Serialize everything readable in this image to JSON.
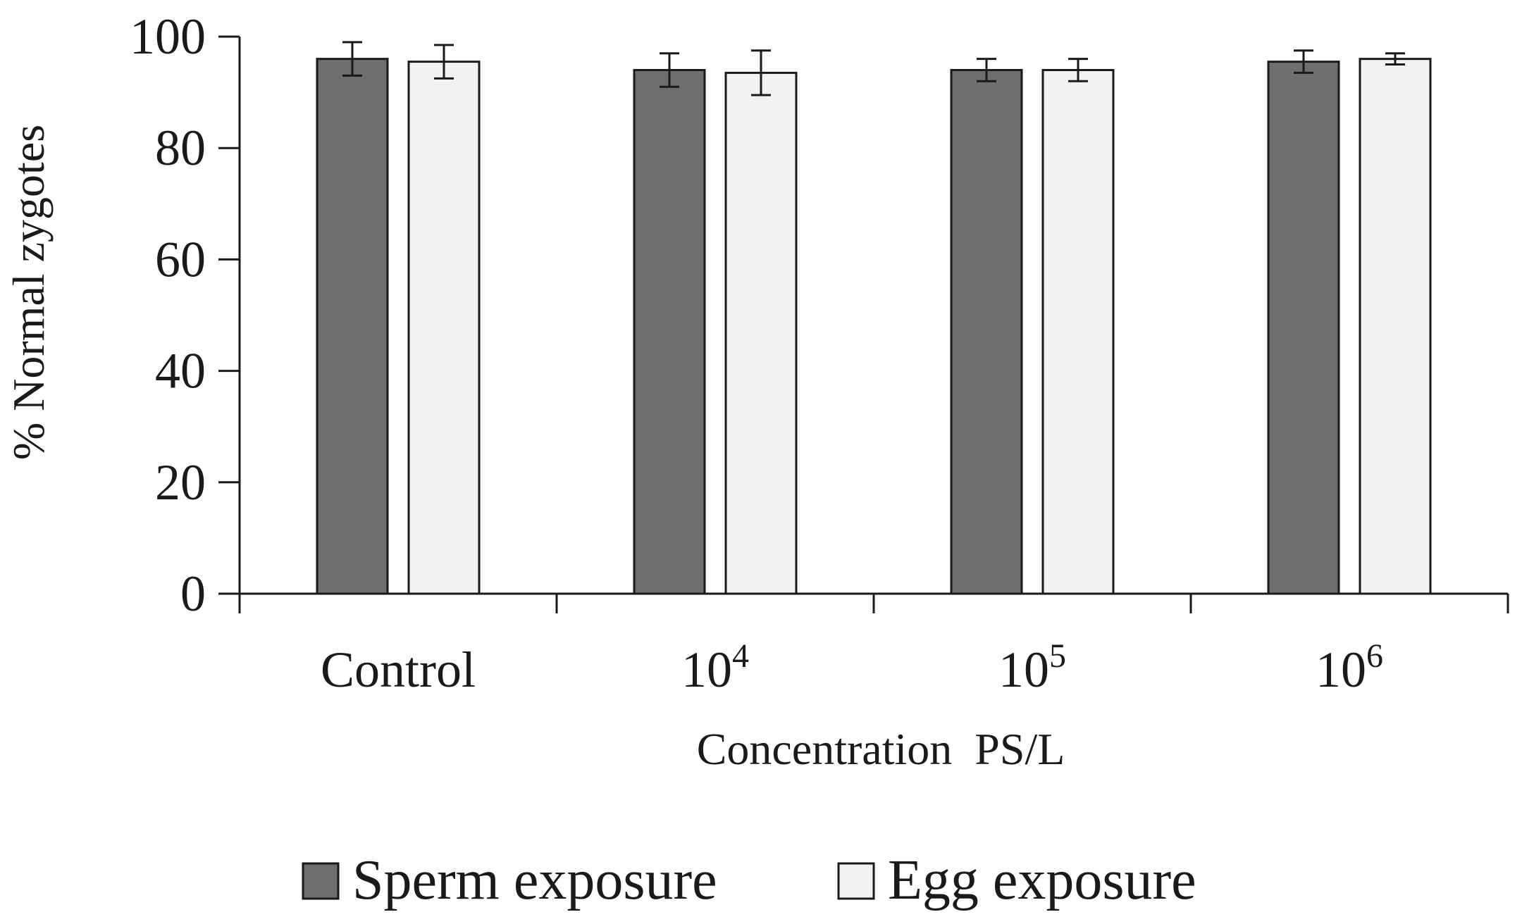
{
  "chart_data": {
    "type": "bar",
    "title": "",
    "xlabel": "Concentration  PS/L",
    "ylabel": "% Normal zygotes",
    "ylim": [
      0,
      100
    ],
    "yticks": [
      0,
      20,
      40,
      60,
      80,
      100
    ],
    "grid": false,
    "legend_position": "bottom",
    "categories": [
      {
        "base": "Control",
        "exp": ""
      },
      {
        "base": "10",
        "exp": "4"
      },
      {
        "base": "10",
        "exp": "5"
      },
      {
        "base": "10",
        "exp": "6"
      }
    ],
    "series": [
      {
        "name": "Sperm exposure",
        "color": "#6f6f6f",
        "values": [
          96,
          94,
          94,
          95.5
        ],
        "errors": [
          3.0,
          3.0,
          2.0,
          2.0
        ]
      },
      {
        "name": "Egg exposure",
        "color": "#f2f2f2",
        "values": [
          95.5,
          93.5,
          94,
          96
        ],
        "errors": [
          3.0,
          4.0,
          2.0,
          1.0
        ]
      }
    ]
  }
}
